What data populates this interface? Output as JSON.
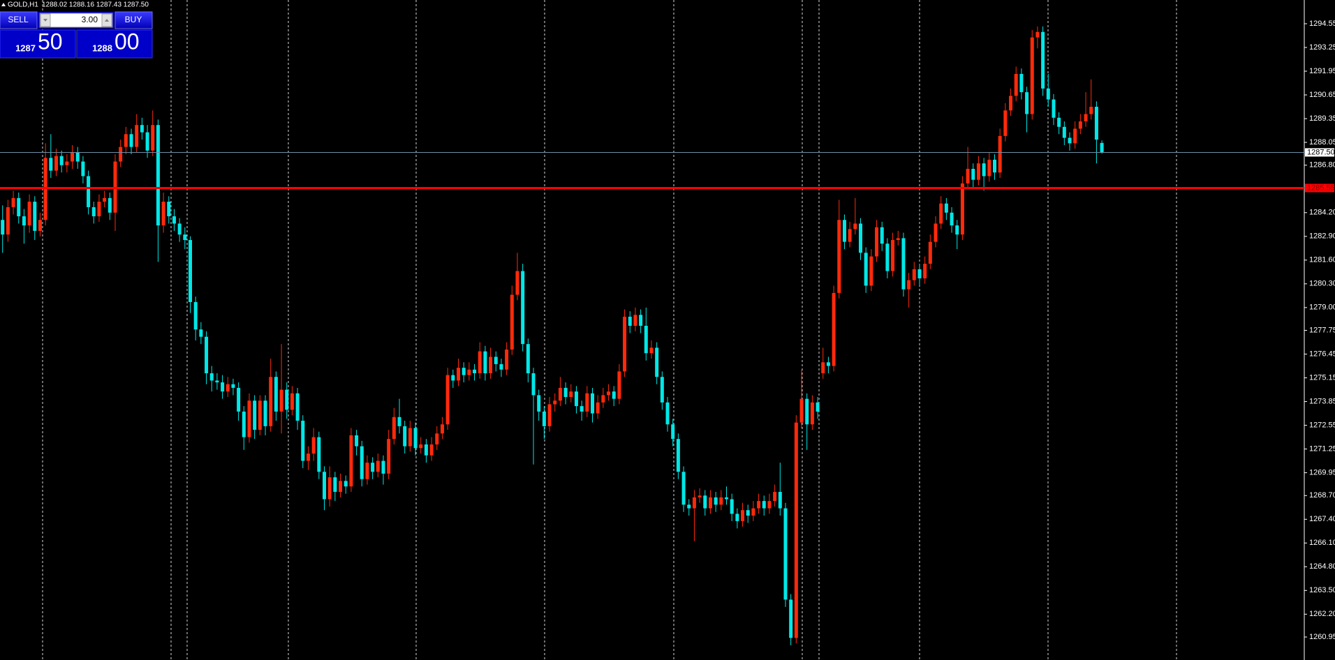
{
  "chart_data": {
    "type": "candlestick",
    "symbol": "GOLD,H1",
    "ohlc_text": "1288.02 1288.16 1287.43 1287.50",
    "up_color": "#ff2a0a",
    "down_color": "#00e8e8",
    "ylim": [
      1259.69,
      1295.85
    ],
    "yticks": [
      1294.55,
      1293.25,
      1291.95,
      1290.65,
      1289.35,
      1288.05,
      {
        "value": 1286.8,
        "label": "1286.80"
      },
      {
        "value": 1284.2,
        "label": "1284.20"
      },
      {
        "value": 1282.9,
        "label": "1282.90"
      },
      {
        "value": 1281.6,
        "label": "1281.60"
      },
      {
        "value": 1280.3,
        "label": "1280.30"
      },
      {
        "value": 1279,
        "label": "1279.00"
      },
      1277.75,
      1276.45,
      1275.15,
      1273.85,
      1272.55,
      1271.25,
      1269.95,
      {
        "value": 1268.7,
        "label": "1268.70"
      },
      {
        "value": 1267.4,
        "label": "1267.40"
      },
      {
        "value": 1266.1,
        "label": "1266.10"
      },
      {
        "value": 1264.8,
        "label": "1264.80"
      },
      {
        "value": 1263.5,
        "label": "1263.50"
      },
      {
        "value": 1262.2,
        "label": "1262.20"
      },
      1260.95
    ],
    "lines": [
      {
        "value": 1287.5,
        "label": "1287.50",
        "color": "#6f8fa8",
        "label_bg": "#ffffff",
        "label_fg": "#000000"
      },
      {
        "value": 1285.55,
        "label": "1285.55",
        "color": "#ff0000",
        "label_bg": "#ff0000",
        "label_fg": "#800000"
      }
    ],
    "candles": [
      [
        1283.8,
        1284.6,
        1282.0,
        1283.0
      ],
      [
        1283.0,
        1284.9,
        1282.6,
        1284.5
      ],
      [
        1284.5,
        1285.4,
        1284.1,
        1285.0
      ],
      [
        1285.0,
        1285.3,
        1283.6,
        1284.0
      ],
      [
        1284.0,
        1284.4,
        1282.5,
        1283.5
      ],
      [
        1283.5,
        1285.2,
        1283.1,
        1284.8
      ],
      [
        1284.8,
        1285.1,
        1282.7,
        1283.2
      ],
      [
        1283.2,
        1284.2,
        1282.9,
        1283.8
      ],
      [
        1283.8,
        1288.0,
        1283.5,
        1287.2
      ],
      [
        1287.2,
        1288.5,
        1286.1,
        1286.5
      ],
      [
        1286.5,
        1287.7,
        1286.2,
        1287.3
      ],
      [
        1287.3,
        1287.6,
        1286.4,
        1286.8
      ],
      [
        1286.8,
        1287.4,
        1286.4,
        1287.0
      ],
      [
        1287.0,
        1287.9,
        1286.6,
        1287.5
      ],
      [
        1287.5,
        1287.8,
        1286.6,
        1287.0
      ],
      [
        1287.0,
        1287.3,
        1285.8,
        1286.2
      ],
      [
        1286.2,
        1286.5,
        1284.1,
        1284.5
      ],
      [
        1284.5,
        1284.8,
        1283.6,
        1284.0
      ],
      [
        1284.0,
        1285.2,
        1283.7,
        1284.8
      ],
      [
        1284.8,
        1285.4,
        1284.5,
        1285.0
      ],
      [
        1285.0,
        1285.3,
        1283.8,
        1284.2
      ],
      [
        1284.2,
        1287.4,
        1283.2,
        1287.0
      ],
      [
        1287.0,
        1288.2,
        1286.7,
        1287.8
      ],
      [
        1287.8,
        1288.9,
        1287.4,
        1288.5
      ],
      [
        1288.5,
        1288.8,
        1287.4,
        1287.8
      ],
      [
        1287.8,
        1289.6,
        1287.5,
        1289.0
      ],
      [
        1289.0,
        1289.4,
        1288.2,
        1288.6
      ],
      [
        1288.6,
        1289.0,
        1287.2,
        1287.6
      ],
      [
        1287.6,
        1289.8,
        1287.3,
        1289.0
      ],
      [
        1289.0,
        1289.3,
        1281.5,
        1283.5
      ],
      [
        1283.5,
        1285.3,
        1283.1,
        1284.8
      ],
      [
        1284.8,
        1285.1,
        1283.6,
        1284.0
      ],
      [
        1284.0,
        1284.4,
        1283.2,
        1283.6
      ],
      [
        1283.6,
        1283.9,
        1282.6,
        1283.0
      ],
      [
        1283.0,
        1283.4,
        1282.2,
        1282.7
      ],
      [
        1282.7,
        1282.9,
        1278.7,
        1279.3
      ],
      [
        1279.3,
        1279.6,
        1277.2,
        1277.8
      ],
      [
        1277.8,
        1278.2,
        1277.0,
        1277.4
      ],
      [
        1277.4,
        1277.7,
        1274.8,
        1275.4
      ],
      [
        1275.4,
        1275.8,
        1274.4,
        1275.0
      ],
      [
        1275.0,
        1275.4,
        1274.5,
        1274.9
      ],
      [
        1274.9,
        1275.3,
        1274.0,
        1274.4
      ],
      [
        1274.4,
        1275.2,
        1274.1,
        1274.8
      ],
      [
        1274.8,
        1275.1,
        1274.2,
        1274.6
      ],
      [
        1274.6,
        1274.9,
        1272.8,
        1273.3
      ],
      [
        1273.3,
        1273.6,
        1271.2,
        1271.9
      ],
      [
        1271.9,
        1274.3,
        1271.6,
        1273.9
      ],
      [
        1273.9,
        1274.2,
        1271.8,
        1272.3
      ],
      [
        1272.3,
        1274.2,
        1272.0,
        1273.9
      ],
      [
        1273.9,
        1274.2,
        1272.0,
        1272.5
      ],
      [
        1272.5,
        1276.2,
        1272.2,
        1275.2
      ],
      [
        1275.2,
        1275.5,
        1272.8,
        1273.3
      ],
      [
        1273.3,
        1277.0,
        1272.1,
        1274.5
      ],
      [
        1274.5,
        1274.9,
        1272.9,
        1273.4
      ],
      [
        1273.4,
        1274.7,
        1273.1,
        1274.3
      ],
      [
        1274.3,
        1274.6,
        1272.3,
        1272.8
      ],
      [
        1272.8,
        1273.1,
        1270.2,
        1270.6
      ],
      [
        1270.6,
        1271.4,
        1270.1,
        1271.0
      ],
      [
        1271.0,
        1272.4,
        1270.6,
        1271.9
      ],
      [
        1271.9,
        1272.2,
        1269.6,
        1270.0
      ],
      [
        1270.0,
        1270.3,
        1267.9,
        1268.5
      ],
      [
        1268.5,
        1270.3,
        1268.1,
        1269.7
      ],
      [
        1269.7,
        1270.0,
        1268.4,
        1268.9
      ],
      [
        1268.9,
        1269.9,
        1268.6,
        1269.5
      ],
      [
        1269.5,
        1269.8,
        1268.8,
        1269.2
      ],
      [
        1269.2,
        1272.4,
        1268.9,
        1272.0
      ],
      [
        1272.0,
        1272.3,
        1270.9,
        1271.4
      ],
      [
        1271.4,
        1271.7,
        1269.2,
        1269.6
      ],
      [
        1269.6,
        1270.9,
        1269.3,
        1270.5
      ],
      [
        1270.5,
        1270.8,
        1269.6,
        1270.0
      ],
      [
        1270.0,
        1271.0,
        1269.7,
        1270.6
      ],
      [
        1270.6,
        1270.9,
        1269.3,
        1269.9
      ],
      [
        1269.9,
        1272.3,
        1269.6,
        1271.8
      ],
      [
        1271.8,
        1273.5,
        1271.5,
        1273.0
      ],
      [
        1273.0,
        1274.0,
        1272.1,
        1272.5
      ],
      [
        1272.5,
        1272.8,
        1271.0,
        1271.4
      ],
      [
        1271.4,
        1272.8,
        1271.1,
        1272.4
      ],
      [
        1272.4,
        1272.7,
        1270.9,
        1271.3
      ],
      [
        1271.3,
        1271.9,
        1271.0,
        1271.5
      ],
      [
        1271.5,
        1271.8,
        1270.5,
        1270.9
      ],
      [
        1270.9,
        1271.9,
        1270.6,
        1271.5
      ],
      [
        1271.5,
        1272.5,
        1271.2,
        1272.1
      ],
      [
        1272.1,
        1273.0,
        1271.8,
        1272.6
      ],
      [
        1272.6,
        1275.7,
        1272.3,
        1275.3
      ],
      [
        1275.3,
        1275.6,
        1274.6,
        1275.0
      ],
      [
        1275.0,
        1276.2,
        1274.7,
        1275.7
      ],
      [
        1275.7,
        1276.0,
        1274.9,
        1275.3
      ],
      [
        1275.3,
        1276.0,
        1275.0,
        1275.6
      ],
      [
        1275.6,
        1275.9,
        1275.0,
        1275.4
      ],
      [
        1275.4,
        1277.1,
        1275.1,
        1276.6
      ],
      [
        1276.6,
        1276.9,
        1275.0,
        1275.4
      ],
      [
        1275.4,
        1276.8,
        1275.1,
        1276.3
      ],
      [
        1276.3,
        1276.6,
        1275.5,
        1275.9
      ],
      [
        1275.9,
        1276.2,
        1275.2,
        1275.6
      ],
      [
        1275.6,
        1277.1,
        1275.3,
        1276.7
      ],
      [
        1276.7,
        1280.2,
        1276.4,
        1279.7
      ],
      [
        1279.7,
        1282.0,
        1279.4,
        1281.0
      ],
      [
        1281.0,
        1281.4,
        1276.6,
        1277.0
      ],
      [
        1277.0,
        1277.3,
        1274.9,
        1275.4
      ],
      [
        1275.4,
        1275.7,
        1270.4,
        1274.2
      ],
      [
        1274.2,
        1274.5,
        1272.8,
        1273.3
      ],
      [
        1273.3,
        1273.6,
        1271.8,
        1272.5
      ],
      [
        1272.5,
        1274.1,
        1272.2,
        1273.7
      ],
      [
        1273.7,
        1274.3,
        1273.3,
        1273.9
      ],
      [
        1273.9,
        1275.2,
        1273.6,
        1274.6
      ],
      [
        1274.6,
        1274.9,
        1273.7,
        1274.1
      ],
      [
        1274.1,
        1274.8,
        1273.8,
        1274.4
      ],
      [
        1274.4,
        1274.7,
        1273.2,
        1273.6
      ],
      [
        1273.6,
        1273.9,
        1272.8,
        1273.3
      ],
      [
        1273.3,
        1274.7,
        1273.0,
        1274.3
      ],
      [
        1274.3,
        1274.6,
        1272.7,
        1273.2
      ],
      [
        1273.2,
        1274.2,
        1272.9,
        1273.8
      ],
      [
        1273.8,
        1274.6,
        1273.5,
        1274.2
      ],
      [
        1274.2,
        1274.8,
        1273.9,
        1274.4
      ],
      [
        1274.4,
        1274.7,
        1273.6,
        1274.0
      ],
      [
        1274.0,
        1275.9,
        1273.7,
        1275.5
      ],
      [
        1275.5,
        1278.9,
        1275.2,
        1278.5
      ],
      [
        1278.5,
        1278.8,
        1277.6,
        1278.0
      ],
      [
        1278.0,
        1279.0,
        1277.7,
        1278.6
      ],
      [
        1278.6,
        1278.9,
        1277.6,
        1278.0
      ],
      [
        1278.0,
        1279.0,
        1276.1,
        1276.5
      ],
      [
        1276.5,
        1277.2,
        1276.2,
        1276.8
      ],
      [
        1276.8,
        1277.1,
        1274.8,
        1275.2
      ],
      [
        1275.2,
        1275.5,
        1273.4,
        1273.8
      ],
      [
        1273.8,
        1274.1,
        1272.2,
        1272.6
      ],
      [
        1272.6,
        1272.9,
        1271.4,
        1271.8
      ],
      [
        1271.8,
        1272.1,
        1269.6,
        1270.0
      ],
      [
        1270.0,
        1270.3,
        1267.8,
        1268.2
      ],
      [
        1268.2,
        1268.5,
        1267.6,
        1268.0
      ],
      [
        1268.0,
        1269.0,
        1266.2,
        1268.6
      ],
      [
        1268.6,
        1269.1,
        1268.3,
        1268.7
      ],
      [
        1268.7,
        1269.0,
        1267.6,
        1268.0
      ],
      [
        1268.0,
        1269.0,
        1267.7,
        1268.6
      ],
      [
        1268.6,
        1268.9,
        1267.8,
        1268.2
      ],
      [
        1268.2,
        1269.0,
        1267.9,
        1268.6
      ],
      [
        1268.6,
        1269.2,
        1268.2,
        1268.5
      ],
      [
        1268.5,
        1268.8,
        1267.3,
        1267.7
      ],
      [
        1267.7,
        1268.0,
        1266.9,
        1267.3
      ],
      [
        1267.3,
        1268.3,
        1267.0,
        1267.9
      ],
      [
        1267.9,
        1268.2,
        1267.2,
        1267.6
      ],
      [
        1267.6,
        1268.4,
        1267.3,
        1268.0
      ],
      [
        1268.0,
        1268.8,
        1267.7,
        1268.4
      ],
      [
        1268.4,
        1268.7,
        1267.6,
        1268.0
      ],
      [
        1268.0,
        1268.8,
        1267.7,
        1268.4
      ],
      [
        1268.4,
        1269.3,
        1268.1,
        1268.9
      ],
      [
        1268.9,
        1270.5,
        1267.6,
        1268.0
      ],
      [
        1268.0,
        1268.3,
        1262.6,
        1263.0
      ],
      [
        1263.0,
        1263.3,
        1260.5,
        1260.9
      ],
      [
        1260.9,
        1273.1,
        1260.6,
        1272.7
      ],
      [
        1272.7,
        1275.6,
        1272.4,
        1274.0
      ],
      [
        1274.0,
        1274.3,
        1271.2,
        1272.6
      ],
      [
        1272.6,
        1274.2,
        1272.3,
        1273.8
      ],
      [
        1273.8,
        1274.1,
        1272.9,
        1273.3
      ],
      [
        1275.4,
        1276.8,
        1275.1,
        1276.0
      ],
      [
        1276.0,
        1276.3,
        1275.4,
        1275.8
      ],
      [
        1275.8,
        1280.2,
        1275.5,
        1279.8
      ],
      [
        1279.8,
        1284.9,
        1279.5,
        1283.8
      ],
      [
        1283.8,
        1284.1,
        1282.2,
        1282.6
      ],
      [
        1282.6,
        1283.7,
        1282.3,
        1283.3
      ],
      [
        1283.3,
        1285.0,
        1283.0,
        1283.6
      ],
      [
        1283.6,
        1283.9,
        1281.6,
        1282.0
      ],
      [
        1282.0,
        1282.3,
        1279.8,
        1280.2
      ],
      [
        1280.2,
        1282.2,
        1279.9,
        1281.8
      ],
      [
        1281.8,
        1283.8,
        1281.5,
        1283.4
      ],
      [
        1283.4,
        1283.7,
        1282.1,
        1282.5
      ],
      [
        1282.5,
        1282.8,
        1280.6,
        1281.0
      ],
      [
        1281.0,
        1283.1,
        1280.7,
        1282.7
      ],
      [
        1282.7,
        1283.2,
        1282.4,
        1282.8
      ],
      [
        1282.8,
        1283.1,
        1279.6,
        1280.0
      ],
      [
        1280.0,
        1280.9,
        1279.0,
        1280.5
      ],
      [
        1280.5,
        1281.5,
        1280.2,
        1281.1
      ],
      [
        1281.1,
        1281.4,
        1280.2,
        1280.6
      ],
      [
        1280.6,
        1281.8,
        1280.3,
        1281.4
      ],
      [
        1281.4,
        1283.0,
        1281.1,
        1282.6
      ],
      [
        1282.6,
        1284.0,
        1282.3,
        1283.6
      ],
      [
        1283.6,
        1285.1,
        1283.3,
        1284.7
      ],
      [
        1284.7,
        1285.0,
        1283.8,
        1284.2
      ],
      [
        1284.2,
        1284.5,
        1283.1,
        1283.5
      ],
      [
        1283.5,
        1283.8,
        1282.2,
        1283.0
      ],
      [
        1283.0,
        1286.2,
        1282.7,
        1285.8
      ],
      [
        1285.8,
        1287.8,
        1285.5,
        1286.6
      ],
      [
        1286.6,
        1286.9,
        1285.6,
        1286.0
      ],
      [
        1286.0,
        1287.3,
        1285.7,
        1286.9
      ],
      [
        1286.9,
        1287.2,
        1285.4,
        1286.2
      ],
      [
        1286.2,
        1287.5,
        1285.9,
        1287.1
      ],
      [
        1287.1,
        1287.4,
        1286.0,
        1286.4
      ],
      [
        1286.4,
        1288.8,
        1286.1,
        1288.4
      ],
      [
        1288.4,
        1290.2,
        1288.1,
        1289.8
      ],
      [
        1289.8,
        1291.0,
        1289.5,
        1290.6
      ],
      [
        1290.6,
        1292.2,
        1290.3,
        1291.8
      ],
      [
        1291.8,
        1292.1,
        1290.4,
        1290.8
      ],
      [
        1290.8,
        1291.1,
        1288.6,
        1289.6
      ],
      [
        1289.6,
        1294.2,
        1289.3,
        1293.8
      ],
      [
        1293.8,
        1294.4,
        1293.2,
        1294.1
      ],
      [
        1294.1,
        1294.4,
        1290.6,
        1291.0
      ],
      [
        1291.0,
        1291.8,
        1290.0,
        1290.4
      ],
      [
        1290.4,
        1290.7,
        1289.0,
        1289.4
      ],
      [
        1289.4,
        1289.7,
        1288.5,
        1288.9
      ],
      [
        1288.9,
        1289.2,
        1287.9,
        1288.3
      ],
      [
        1288.3,
        1288.6,
        1287.6,
        1288.0
      ],
      [
        1288.0,
        1289.2,
        1287.7,
        1288.8
      ],
      [
        1288.8,
        1289.6,
        1288.5,
        1289.2
      ],
      [
        1289.2,
        1290.8,
        1288.9,
        1289.6
      ],
      [
        1289.6,
        1291.5,
        1289.3,
        1290.0
      ],
      [
        1290.0,
        1290.3,
        1286.9,
        1288.2
      ],
      [
        1288.02,
        1288.16,
        1287.43,
        1287.5
      ]
    ]
  },
  "trade_panel": {
    "sell": "SELL",
    "buy": "BUY",
    "lot": "3.00",
    "bid_big": "1287",
    "bid_small": "50",
    "ask_big": "1288",
    "ask_small": "00"
  }
}
